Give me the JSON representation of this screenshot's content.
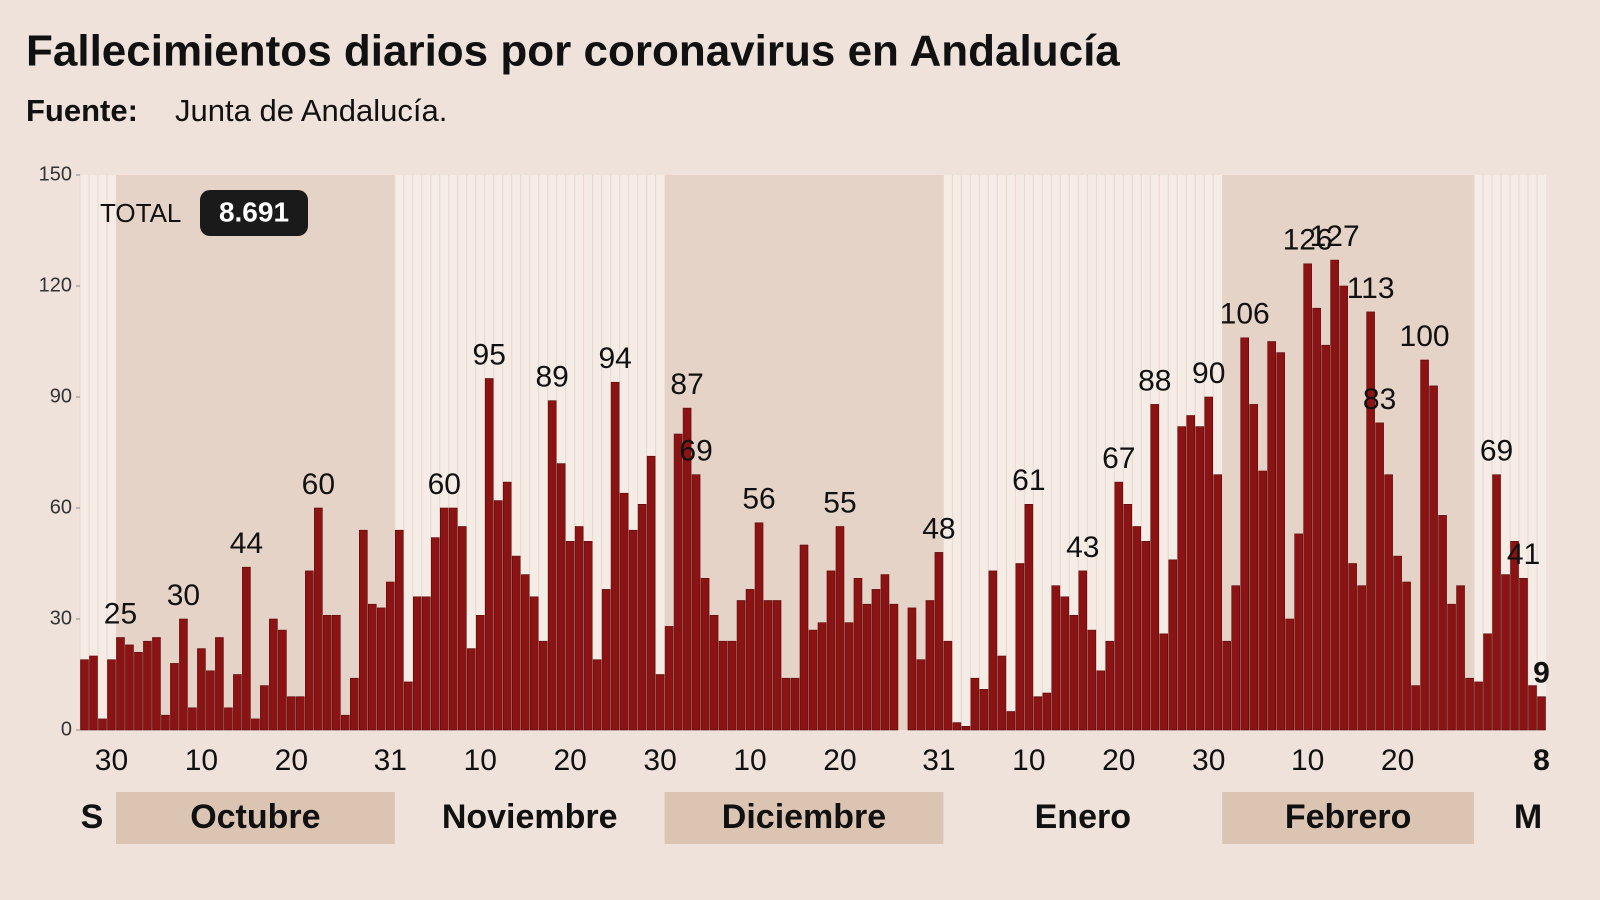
{
  "chart_data": {
    "type": "bar",
    "title": "Fallecimientos diarios por coronavirus en Andalucía",
    "source_label": "Fuente:",
    "source": "Junta de Andalucía.",
    "total_label": "TOTAL",
    "total": "8.691",
    "color": "#8c1313",
    "ylim": [
      0,
      150
    ],
    "yticks": [
      0,
      30,
      60,
      90,
      120,
      150
    ],
    "months": [
      "S",
      "Octubre",
      "Noviembre",
      "Diciembre",
      "Enero",
      "Febrero",
      "M"
    ],
    "categories": [
      null,
      null,
      null,
      "30",
      null,
      null,
      null,
      null,
      null,
      null,
      null,
      null,
      null,
      "10",
      null,
      null,
      null,
      null,
      null,
      null,
      null,
      null,
      null,
      "20",
      null,
      null,
      null,
      null,
      null,
      null,
      null,
      null,
      null,
      null,
      "31",
      null,
      null,
      null,
      null,
      null,
      null,
      null,
      null,
      null,
      "10",
      null,
      null,
      null,
      null,
      null,
      null,
      null,
      null,
      null,
      "20",
      null,
      null,
      null,
      null,
      null,
      null,
      null,
      null,
      null,
      "30",
      null,
      null,
      null,
      null,
      null,
      null,
      null,
      null,
      null,
      "10",
      null,
      null,
      null,
      null,
      null,
      null,
      null,
      null,
      null,
      "20",
      null,
      null,
      null,
      null,
      null,
      null,
      null,
      null,
      null,
      null,
      "31",
      null,
      null,
      null,
      null,
      null,
      null,
      null,
      null,
      null,
      "10",
      null,
      null,
      null,
      null,
      null,
      null,
      null,
      null,
      null,
      "20",
      null,
      null,
      null,
      null,
      null,
      null,
      null,
      null,
      null,
      "30",
      null,
      null,
      null,
      null,
      null,
      null,
      null,
      null,
      null,
      null,
      "10",
      null,
      null,
      null,
      null,
      null,
      null,
      null,
      null,
      null,
      "20",
      null,
      null,
      null,
      null,
      null,
      null,
      null,
      null,
      null,
      null,
      null,
      null,
      null,
      null,
      null,
      "8"
    ],
    "values": [
      19,
      20,
      3,
      19,
      25,
      23,
      21,
      24,
      25,
      4,
      18,
      30,
      6,
      22,
      16,
      25,
      6,
      15,
      44,
      3,
      12,
      30,
      27,
      9,
      9,
      43,
      60,
      31,
      31,
      4,
      14,
      54,
      34,
      33,
      40,
      54,
      13,
      36,
      36,
      52,
      60,
      60,
      55,
      22,
      31,
      95,
      62,
      67,
      47,
      42,
      36,
      24,
      89,
      72,
      51,
      55,
      51,
      19,
      38,
      94,
      64,
      54,
      61,
      74,
      15,
      28,
      80,
      87,
      69,
      41,
      31,
      24,
      24,
      35,
      38,
      56,
      35,
      35,
      14,
      14,
      50,
      27,
      29,
      43,
      55,
      29,
      41,
      34,
      38,
      42,
      34,
      0,
      33,
      19,
      35,
      48,
      24,
      2,
      1,
      14,
      11,
      43,
      20,
      5,
      45,
      61,
      9,
      10,
      39,
      36,
      31,
      43,
      27,
      16,
      24,
      67,
      61,
      55,
      51,
      88,
      26,
      46,
      82,
      85,
      82,
      90,
      69,
      24,
      39,
      106,
      88,
      70,
      105,
      102,
      30,
      53,
      126,
      114,
      104,
      127,
      120,
      45,
      39,
      113,
      83,
      69,
      47,
      40,
      12,
      100,
      93,
      58,
      34,
      39,
      14,
      13,
      26,
      69,
      42,
      51,
      41,
      12,
      9
    ],
    "value_labels": [
      null,
      null,
      null,
      null,
      "25",
      null,
      null,
      null,
      null,
      null,
      null,
      "30",
      null,
      null,
      null,
      null,
      null,
      null,
      "44",
      null,
      null,
      null,
      null,
      null,
      null,
      null,
      "60",
      null,
      null,
      null,
      null,
      null,
      null,
      null,
      null,
      null,
      null,
      null,
      null,
      null,
      "60",
      null,
      null,
      null,
      null,
      "95",
      null,
      null,
      null,
      null,
      null,
      null,
      "89",
      null,
      null,
      null,
      null,
      null,
      null,
      "94",
      null,
      null,
      null,
      null,
      null,
      null,
      null,
      "87",
      "69",
      null,
      null,
      null,
      null,
      null,
      null,
      "56",
      null,
      null,
      null,
      null,
      null,
      null,
      null,
      null,
      "55",
      null,
      null,
      null,
      null,
      null,
      null,
      null,
      null,
      null,
      null,
      "48",
      null,
      null,
      null,
      null,
      null,
      null,
      null,
      null,
      null,
      "61",
      null,
      null,
      null,
      null,
      null,
      "43",
      null,
      null,
      null,
      "67",
      null,
      null,
      null,
      "88",
      null,
      null,
      null,
      null,
      null,
      "90",
      null,
      null,
      null,
      "106",
      null,
      null,
      null,
      null,
      null,
      null,
      "126",
      null,
      null,
      "127",
      null,
      null,
      null,
      "113",
      "83",
      null,
      null,
      null,
      null,
      "100",
      null,
      null,
      null,
      null,
      null,
      null,
      null,
      "69",
      null,
      null,
      "41",
      null,
      "9"
    ]
  }
}
